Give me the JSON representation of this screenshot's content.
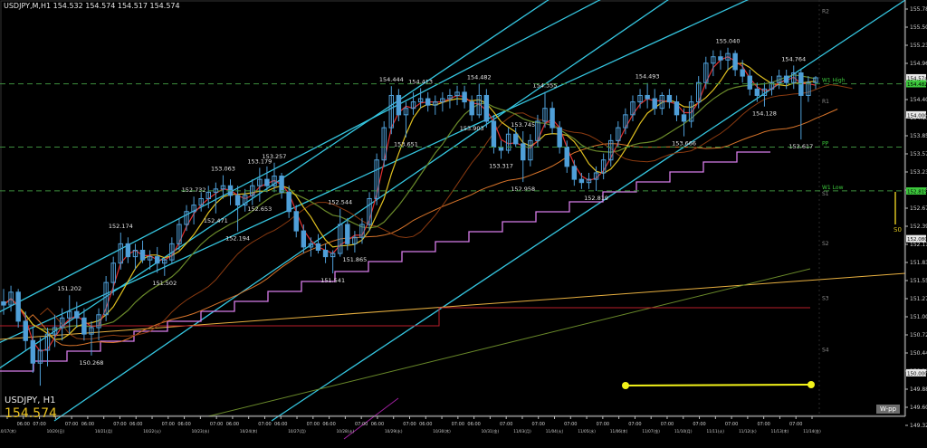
{
  "header": {
    "symbol_line": "USDJPY,M,H1  154.532 154.574 154.517 154.574"
  },
  "symbol_label": "USDJPY, H1",
  "current_price": "154.574",
  "corner_label": "W-pp",
  "side_label": "S0",
  "colors": {
    "background": "#000000",
    "candle": "#4f9fd8",
    "channel": "#35c6e0",
    "stairs": "#d77ce9",
    "ichimoku": "#d8742a",
    "ma_fast": "#e23030",
    "ma_mid": "#e0c020",
    "ma_slow": "#6a8a2a",
    "trend_line": "#e8b040",
    "ref_line": "#b81e2a",
    "pivot_label": "#8a8a8a",
    "pivot_green": "#3cc83c",
    "high_low_dash": "#3d8d3d",
    "yellow_marker": "#f3f31a",
    "current_box": "#e8e8e8"
  },
  "chart_data": {
    "type": "candlestick",
    "symbol": "USDJPY",
    "timeframe": "H1",
    "y_axis": {
      "range": [
        149.325,
        155.78
      ],
      "ticks": [
        "155.780",
        "155.505",
        "155.230",
        "154.965",
        "154.685",
        "154.405",
        "154.130",
        "153.850",
        "153.570",
        "153.230",
        "152.950",
        "152.670",
        "152.390",
        "152.115",
        "151.835",
        "151.555",
        "151.275",
        "151.000",
        "150.720",
        "150.440",
        "150.160",
        "149.880",
        "149.605",
        "149.325"
      ]
    },
    "x_axis": {
      "ticks": [
        "10/17(木)",
        "06:00",
        "07:00",
        "10/20(日)",
        "07:00",
        "06:00",
        "10/21(月)",
        "07:00",
        "06:00",
        "10/22(火)",
        "07:00",
        "06:00",
        "10/23(水)",
        "07:00",
        "06:00",
        "10/24(木)",
        "07:00",
        "06:00",
        "10/27(月)",
        "07:00",
        "06:00",
        "10/28(火)",
        "07:00",
        "06:00",
        "10/29(水)",
        "07:00",
        "06:00",
        "10/30(木)",
        "07:00",
        "06:00",
        "10/31(金)",
        "07:00",
        "11/03(月)",
        "07:00",
        "11/04(火)",
        "07:00",
        "11/05(水)",
        "07:00",
        "11/06(木)",
        "07:00",
        "11/07(金)",
        "07:00",
        "11/10(月)",
        "07:00",
        "11/11(火)",
        "07:00",
        "11/12(水)",
        "07:00",
        "11/13(木)",
        "07:00",
        "11/14(金)"
      ]
    },
    "price_labels": [
      {
        "i": 9,
        "text": "151.202",
        "y": 151.202,
        "pos": "above"
      },
      {
        "i": 12,
        "text": "150.268",
        "y": 150.268,
        "pos": "below"
      },
      {
        "i": 16,
        "text": "152.174",
        "y": 152.174,
        "pos": "above"
      },
      {
        "i": 22,
        "text": "151.502",
        "y": 151.502,
        "pos": "below"
      },
      {
        "i": 26,
        "text": "152.732",
        "y": 152.732,
        "pos": "above"
      },
      {
        "i": 30,
        "text": "153.063",
        "y": 153.063,
        "pos": "above"
      },
      {
        "i": 29,
        "text": "152.471",
        "y": 152.471,
        "pos": "below"
      },
      {
        "i": 35,
        "text": "153.179",
        "y": 153.179,
        "pos": "above"
      },
      {
        "i": 37,
        "text": "153.257",
        "y": 153.257,
        "pos": "above"
      },
      {
        "i": 35,
        "text": "152.653",
        "y": 152.653,
        "pos": "below"
      },
      {
        "i": 32,
        "text": "152.194",
        "y": 152.194,
        "pos": "below"
      },
      {
        "i": 46,
        "text": "152.544",
        "y": 152.544,
        "pos": "above"
      },
      {
        "i": 45,
        "text": "151.541",
        "y": 151.541,
        "pos": "below"
      },
      {
        "i": 48,
        "text": "151.865",
        "y": 151.865,
        "pos": "below"
      },
      {
        "i": 53,
        "text": "154.444",
        "y": 154.444,
        "pos": "above"
      },
      {
        "i": 57,
        "text": "154.413",
        "y": 154.413,
        "pos": "above"
      },
      {
        "i": 55,
        "text": "153.651",
        "y": 153.651,
        "pos": "below"
      },
      {
        "i": 65,
        "text": "154.482",
        "y": 154.482,
        "pos": "above"
      },
      {
        "i": 64,
        "text": "153.903",
        "y": 153.903,
        "pos": "below"
      },
      {
        "i": 68,
        "text": "153.317",
        "y": 153.317,
        "pos": "below"
      },
      {
        "i": 71,
        "text": "153.745",
        "y": 153.745,
        "pos": "above"
      },
      {
        "i": 74,
        "text": "154.355",
        "y": 154.355,
        "pos": "above"
      },
      {
        "i": 71,
        "text": "152.958",
        "y": 152.958,
        "pos": "below"
      },
      {
        "i": 81,
        "text": "152.819",
        "y": 152.819,
        "pos": "below"
      },
      {
        "i": 88,
        "text": "154.493",
        "y": 154.493,
        "pos": "above"
      },
      {
        "i": 93,
        "text": "153.666",
        "y": 153.666,
        "pos": "below"
      },
      {
        "i": 99,
        "text": "155.040",
        "y": 155.04,
        "pos": "above"
      },
      {
        "i": 104,
        "text": "154.128",
        "y": 154.128,
        "pos": "below"
      },
      {
        "i": 108,
        "text": "154.764",
        "y": 154.764,
        "pos": "above"
      },
      {
        "i": 109,
        "text": "153.617",
        "y": 153.617,
        "pos": "below"
      }
    ],
    "pivots": [
      {
        "label": "R2",
        "y": 155.55,
        "kind": "gray"
      },
      {
        "label": "W1 High",
        "y": 154.48,
        "kind": "green"
      },
      {
        "label": "R1",
        "y": 154.15,
        "kind": "gray"
      },
      {
        "label": "PP",
        "y": 153.5,
        "kind": "green"
      },
      {
        "label": "W1 Low",
        "y": 152.82,
        "kind": "green"
      },
      {
        "label": "S1",
        "y": 152.72,
        "kind": "gray"
      },
      {
        "label": "S2",
        "y": 151.95,
        "kind": "gray"
      },
      {
        "label": "S3",
        "y": 151.1,
        "kind": "gray"
      },
      {
        "label": "S4",
        "y": 150.3,
        "kind": "gray"
      }
    ],
    "right_boxes": [
      {
        "text": "154.574",
        "y": 154.574,
        "kind": "white"
      },
      {
        "text": "154.482",
        "y": 154.482,
        "kind": "green"
      },
      {
        "text": "154.000",
        "y": 154.0,
        "kind": "white"
      },
      {
        "text": "152.819",
        "y": 152.819,
        "kind": "green"
      },
      {
        "text": "152.080",
        "y": 152.08,
        "kind": "white"
      },
      {
        "text": "150.000",
        "y": 150.0,
        "kind": "white"
      }
    ],
    "series": [
      {
        "name": "",
        "ohlc": [
          [
            151.1,
            151.3,
            150.9,
            151.05
          ],
          [
            151.05,
            151.35,
            150.95,
            151.25
          ],
          [
            151.25,
            151.3,
            150.7,
            150.8
          ],
          [
            150.8,
            150.95,
            150.35,
            150.5
          ],
          [
            150.5,
            150.7,
            150.0,
            150.15
          ],
          [
            150.15,
            150.55,
            149.8,
            150.35
          ],
          [
            150.35,
            150.7,
            150.1,
            150.6
          ],
          [
            150.6,
            150.9,
            150.4,
            150.7
          ],
          [
            150.7,
            151.0,
            150.5,
            150.85
          ],
          [
            150.85,
            151.202,
            150.6,
            150.95
          ],
          [
            150.95,
            151.1,
            150.7,
            150.85
          ],
          [
            150.85,
            151.0,
            150.5,
            150.6
          ],
          [
            150.6,
            150.8,
            150.268,
            150.7
          ],
          [
            150.7,
            151.0,
            150.5,
            150.9
          ],
          [
            150.9,
            151.5,
            150.8,
            151.4
          ],
          [
            151.4,
            151.8,
            151.2,
            151.7
          ],
          [
            151.7,
            152.174,
            151.6,
            152.0
          ],
          [
            152.0,
            152.1,
            151.7,
            151.8
          ],
          [
            151.8,
            152.0,
            151.6,
            151.9
          ],
          [
            151.9,
            152.05,
            151.7,
            151.75
          ],
          [
            151.75,
            151.9,
            151.6,
            151.8
          ],
          [
            151.8,
            151.95,
            151.55,
            151.7
          ],
          [
            151.7,
            151.8,
            151.502,
            151.75
          ],
          [
            151.75,
            152.1,
            151.7,
            152.0
          ],
          [
            152.0,
            152.4,
            151.9,
            152.3
          ],
          [
            152.3,
            152.6,
            152.2,
            152.5
          ],
          [
            152.5,
            152.732,
            152.3,
            152.6
          ],
          [
            152.6,
            152.8,
            152.5,
            152.7
          ],
          [
            152.7,
            152.9,
            152.55,
            152.8
          ],
          [
            152.8,
            152.95,
            152.471,
            152.85
          ],
          [
            152.85,
            153.063,
            152.7,
            152.9
          ],
          [
            152.9,
            153.0,
            152.6,
            152.75
          ],
          [
            152.75,
            152.9,
            152.194,
            152.6
          ],
          [
            152.6,
            152.85,
            152.5,
            152.75
          ],
          [
            152.75,
            153.0,
            152.6,
            152.9
          ],
          [
            152.9,
            153.179,
            152.653,
            153.0
          ],
          [
            153.0,
            153.2,
            152.8,
            152.9
          ],
          [
            152.9,
            153.257,
            152.8,
            153.05
          ],
          [
            153.05,
            153.1,
            152.7,
            152.8
          ],
          [
            152.8,
            152.9,
            152.4,
            152.5
          ],
          [
            152.5,
            152.6,
            152.1,
            152.2
          ],
          [
            152.2,
            152.3,
            151.85,
            151.95
          ],
          [
            151.95,
            152.1,
            151.8,
            152.0
          ],
          [
            152.0,
            152.15,
            151.85,
            151.9
          ],
          [
            151.9,
            152.0,
            151.7,
            151.8
          ],
          [
            151.8,
            151.9,
            151.541,
            151.85
          ],
          [
            151.85,
            152.544,
            151.8,
            152.3
          ],
          [
            152.3,
            152.4,
            151.9,
            152.0
          ],
          [
            152.0,
            152.2,
            151.865,
            152.1
          ],
          [
            152.1,
            152.4,
            152.0,
            152.3
          ],
          [
            152.3,
            152.8,
            152.2,
            152.7
          ],
          [
            152.7,
            153.4,
            152.6,
            153.3
          ],
          [
            153.3,
            153.9,
            153.2,
            153.8
          ],
          [
            153.8,
            154.444,
            153.7,
            154.3
          ],
          [
            154.3,
            154.4,
            153.9,
            154.0
          ],
          [
            154.0,
            154.2,
            153.651,
            154.1
          ],
          [
            154.1,
            154.35,
            154.0,
            154.2
          ],
          [
            154.2,
            154.413,
            154.1,
            154.25
          ],
          [
            154.25,
            154.35,
            154.05,
            154.15
          ],
          [
            154.15,
            154.3,
            154.0,
            154.2
          ],
          [
            154.2,
            154.35,
            154.05,
            154.25
          ],
          [
            154.25,
            154.4,
            154.1,
            154.3
          ],
          [
            154.3,
            154.45,
            154.15,
            154.35
          ],
          [
            154.35,
            154.45,
            154.1,
            154.2
          ],
          [
            154.2,
            154.3,
            153.903,
            154.0
          ],
          [
            154.0,
            154.482,
            153.95,
            154.3
          ],
          [
            154.3,
            154.4,
            153.8,
            153.9
          ],
          [
            153.9,
            154.0,
            153.4,
            153.5
          ],
          [
            153.5,
            153.6,
            153.317,
            153.45
          ],
          [
            153.45,
            153.8,
            153.4,
            153.7
          ],
          [
            153.7,
            153.8,
            153.5,
            153.55
          ],
          [
            153.55,
            153.745,
            152.958,
            153.3
          ],
          [
            153.3,
            153.7,
            153.2,
            153.6
          ],
          [
            153.6,
            154.0,
            153.5,
            153.9
          ],
          [
            153.9,
            154.355,
            153.8,
            154.1
          ],
          [
            154.1,
            154.2,
            153.7,
            153.8
          ],
          [
            153.8,
            153.9,
            153.4,
            153.5
          ],
          [
            153.5,
            153.6,
            153.1,
            153.2
          ],
          [
            153.2,
            153.3,
            152.9,
            153.0
          ],
          [
            153.0,
            153.1,
            152.85,
            152.95
          ],
          [
            152.95,
            153.1,
            152.85,
            153.0
          ],
          [
            153.0,
            153.2,
            152.819,
            153.1
          ],
          [
            153.1,
            153.4,
            153.0,
            153.3
          ],
          [
            153.3,
            153.7,
            153.2,
            153.6
          ],
          [
            153.6,
            153.9,
            153.5,
            153.8
          ],
          [
            153.8,
            154.1,
            153.7,
            154.0
          ],
          [
            154.0,
            154.3,
            153.9,
            154.2
          ],
          [
            154.2,
            154.4,
            154.1,
            154.3
          ],
          [
            154.3,
            154.493,
            154.1,
            154.25
          ],
          [
            154.25,
            154.4,
            154.0,
            154.1
          ],
          [
            154.1,
            154.35,
            154.0,
            154.3
          ],
          [
            154.3,
            154.4,
            154.1,
            154.2
          ],
          [
            154.2,
            154.3,
            153.9,
            154.0
          ],
          [
            154.0,
            154.1,
            153.666,
            153.9
          ],
          [
            153.9,
            154.3,
            153.8,
            154.2
          ],
          [
            154.2,
            154.6,
            154.1,
            154.5
          ],
          [
            154.5,
            154.9,
            154.4,
            154.8
          ],
          [
            154.8,
            155.0,
            154.6,
            154.9
          ],
          [
            154.9,
            155.0,
            154.7,
            154.85
          ],
          [
            154.85,
            155.04,
            154.7,
            154.95
          ],
          [
            154.95,
            155.0,
            154.6,
            154.7
          ],
          [
            154.7,
            154.85,
            154.5,
            154.6
          ],
          [
            154.6,
            154.7,
            154.3,
            154.4
          ],
          [
            154.4,
            154.5,
            154.2,
            154.3
          ],
          [
            154.3,
            154.5,
            154.128,
            154.4
          ],
          [
            154.4,
            154.6,
            154.3,
            154.5
          ],
          [
            154.5,
            154.7,
            154.4,
            154.6
          ],
          [
            154.6,
            154.7,
            154.4,
            154.5
          ],
          [
            154.5,
            154.764,
            154.4,
            154.65
          ],
          [
            154.65,
            154.7,
            153.617,
            154.3
          ],
          [
            154.3,
            154.6,
            154.2,
            154.5
          ],
          [
            154.5,
            154.6,
            154.4,
            154.574
          ]
        ]
      }
    ]
  }
}
